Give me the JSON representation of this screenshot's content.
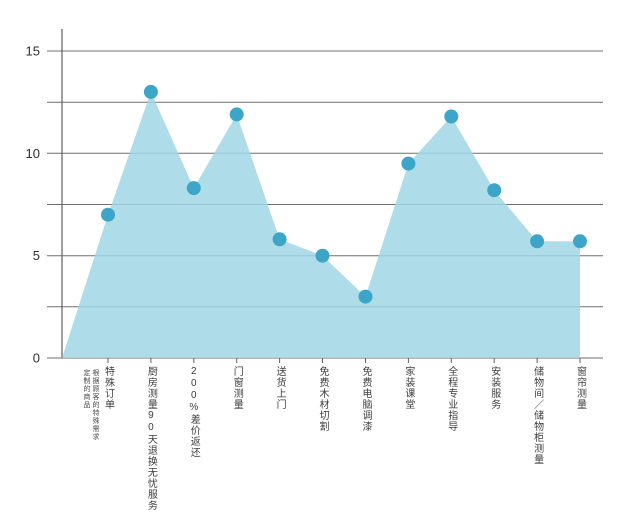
{
  "chart_data": {
    "type": "area",
    "categories": [
      "特殊订单",
      "厨房测量90天退换无忧服务",
      "200%差价返还",
      "门窗测量",
      "送货上门",
      "免费木材切割",
      "免费电脑调漆",
      "家装课堂",
      "全程专业指导",
      "安装服务",
      "储物间／储物柜测量",
      "窗帘测量"
    ],
    "category_annotations": {
      "0": "根据顾客的特殊需求定制的商品"
    },
    "values": [
      7,
      13,
      8.3,
      11.9,
      5.8,
      5,
      3,
      9.5,
      11.8,
      8.2,
      5.7,
      5.7
    ],
    "ylim": [
      0,
      15
    ],
    "y_major_ticks": [
      0,
      5,
      10,
      15
    ],
    "y_gridlines": [
      0,
      2.5,
      5,
      7.5,
      10,
      12.5,
      15
    ],
    "grid": true,
    "legend": "none",
    "marker": "circle",
    "colors": {
      "area_fill": "#a0d6e5",
      "area_opacity": 0.85,
      "marker": "#3da6c8",
      "gridline": "#6e6e6e",
      "axis": "#606060",
      "y_label_text": "#2f2f2f",
      "x_label_text": "#3d3d3d"
    }
  }
}
